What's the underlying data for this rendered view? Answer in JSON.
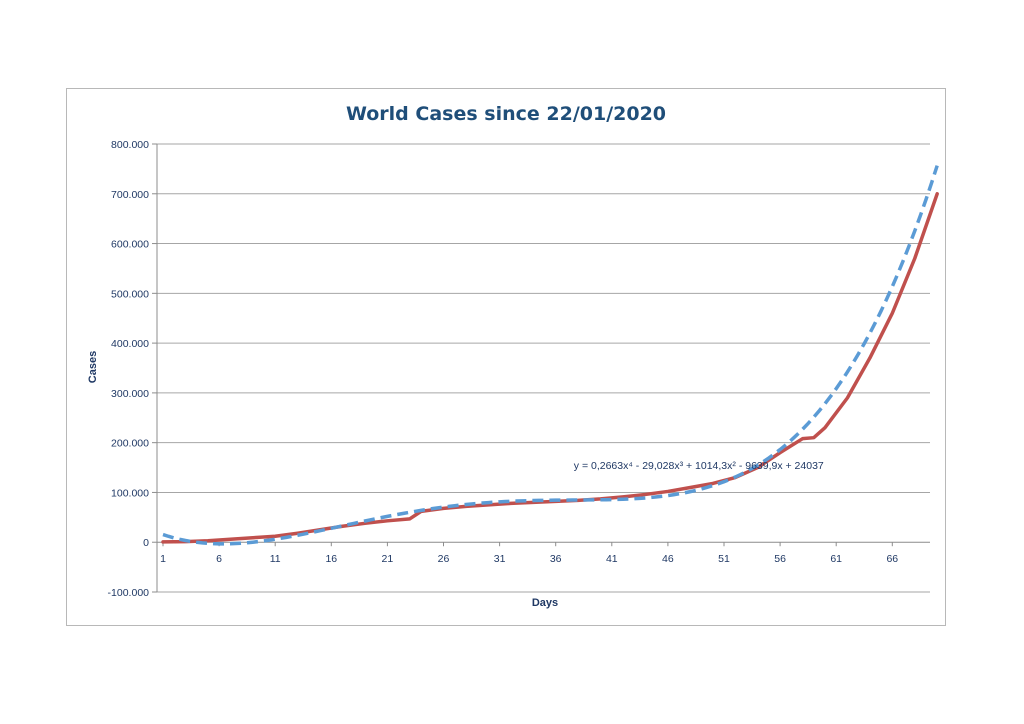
{
  "chart_data": {
    "type": "line",
    "title": "World Cases since 22/01/2020",
    "xlabel": "Days",
    "ylabel": "Cases",
    "xlim": [
      1,
      70
    ],
    "ylim": [
      -100000,
      800000
    ],
    "y_ticks": [
      -100000,
      0,
      100000,
      200000,
      300000,
      400000,
      500000,
      600000,
      700000,
      800000
    ],
    "y_tick_labels": [
      "-100.000",
      "0",
      "100.000",
      "200.000",
      "300.000",
      "400.000",
      "500.000",
      "600.000",
      "700.000",
      "800.000"
    ],
    "x_ticks": [
      1,
      6,
      11,
      16,
      21,
      26,
      31,
      36,
      41,
      46,
      51,
      56,
      61,
      66
    ],
    "x_tick_labels": [
      "1",
      "6",
      "11",
      "16",
      "21",
      "26",
      "31",
      "36",
      "41",
      "46",
      "51",
      "56",
      "61",
      "66"
    ],
    "grid": "horizontal",
    "series": [
      {
        "color": "#c0504d",
        "style": "solid",
        "x": [
          1,
          3,
          5,
          7,
          9,
          11,
          13,
          15,
          17,
          19,
          21,
          23,
          24,
          26,
          28,
          30,
          32,
          34,
          36,
          38,
          40,
          42,
          44,
          46,
          48,
          50,
          52,
          54,
          56,
          58,
          59,
          60,
          62,
          64,
          66,
          68,
          70
        ],
        "y": [
          600,
          1300,
          3000,
          6000,
          9000,
          12000,
          18000,
          25000,
          32000,
          38000,
          43000,
          47000,
          62000,
          68000,
          72000,
          75000,
          78000,
          80000,
          82000,
          84000,
          87000,
          91000,
          96000,
          102000,
          110000,
          118000,
          130000,
          150000,
          180000,
          208000,
          210000,
          230000,
          290000,
          370000,
          460000,
          570000,
          700000
        ]
      },
      {
        "color": "#5b9bd5",
        "style": "dashed",
        "equation": "y = 0,2663x⁴ - 29,028x³ + 1014,3x² - 9639,9x + 24037",
        "coefficients": [
          0.2663,
          -29.028,
          1014.3,
          -9639.9,
          24037
        ]
      }
    ],
    "annotations": [
      {
        "text": "y = 0,2663x⁴ - 29,028x³ + 1014,3x² - 9639,9x + 24037",
        "x": 50,
        "y": 155000
      }
    ]
  }
}
